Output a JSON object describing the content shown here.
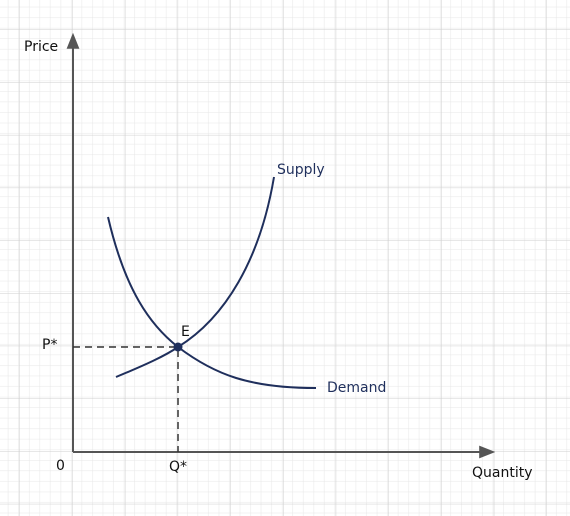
{
  "axes": {
    "y_label": "Price",
    "x_label": "Quantity",
    "origin": "0"
  },
  "equilibrium": {
    "price": "P*",
    "quantity": "Q*",
    "point": "E"
  },
  "curves": {
    "supply": "Supply",
    "demand": "Demand"
  }
}
